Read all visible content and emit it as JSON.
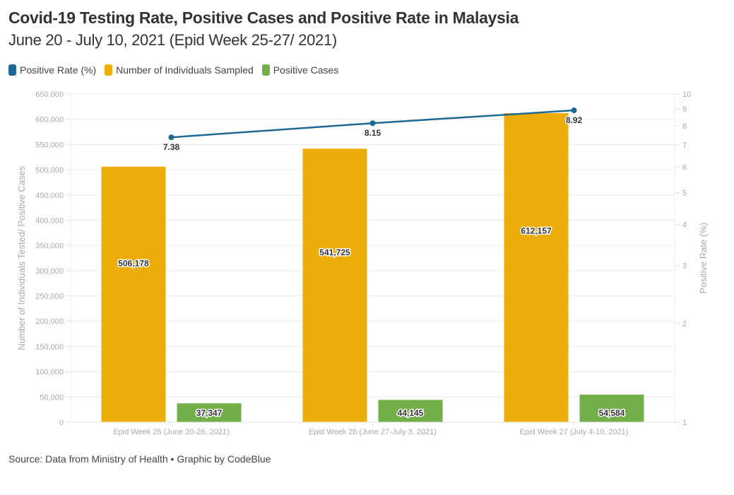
{
  "header": {
    "title": "Covid-19 Testing Rate, Positive Cases and Positive Rate in Malaysia",
    "subtitle": "June 20 - July 10, 2021 (Epid Week 25-27/ 2021)"
  },
  "legend": [
    {
      "label": "Positive Rate (%)",
      "color": "#1d6996"
    },
    {
      "label": "Number of Individuals Sampled",
      "color": "#edad08"
    },
    {
      "label": "Positive Cases",
      "color": "#73af48"
    }
  ],
  "footer": {
    "source": "Source: Data from Ministry of Health • Graphic by CodeBlue"
  },
  "chart_data": {
    "type": "bar",
    "title": "Covid-19 Testing Rate, Positive Cases and Positive Rate in Malaysia",
    "subtitle": "June 20 - July 10, 2021 (Epid Week 25-27/ 2021)",
    "categories": [
      "Epid Week 25 (June 20-26, 2021)",
      "Epid Week 26 (June 27-July 3, 2021)",
      "Epid Week 27 (July 4-10, 2021)"
    ],
    "series": [
      {
        "name": "Number of Individuals Sampled",
        "type": "bar",
        "axis": "left",
        "color": "#edad08",
        "values": [
          506178,
          541725,
          612157
        ],
        "labels": [
          "506,178",
          "541,725",
          "612,157"
        ]
      },
      {
        "name": "Positive Cases",
        "type": "bar",
        "axis": "left",
        "color": "#73af48",
        "values": [
          37347,
          44145,
          54584
        ],
        "labels": [
          "37,347",
          "44,145",
          "54,584"
        ]
      },
      {
        "name": "Positive Rate (%)",
        "type": "line",
        "axis": "right",
        "color": "#1d6996",
        "values": [
          7.38,
          8.15,
          8.92
        ],
        "labels": [
          "7.38",
          "8.15",
          "8.92"
        ]
      }
    ],
    "ylabel": "Number of Individuals Tested/ Positive Cases",
    "ylim": [
      0,
      650000
    ],
    "yticks": [
      0,
      50000,
      100000,
      150000,
      200000,
      250000,
      300000,
      350000,
      400000,
      450000,
      500000,
      550000,
      600000,
      650000
    ],
    "ytick_labels": [
      "0",
      "50,000",
      "100,000",
      "150,000",
      "200,000",
      "250,000",
      "300,000",
      "350,000",
      "400,000",
      "450,000",
      "500,000",
      "550,000",
      "600,000",
      "650,000"
    ],
    "y2label": "Positive Rate (%)",
    "y2scale": "log",
    "y2lim": [
      1,
      10
    ],
    "y2ticks": [
      1,
      2,
      3,
      4,
      5,
      6,
      7,
      8,
      9,
      10
    ],
    "y2tick_labels": [
      "1",
      "2",
      "3",
      "4",
      "5",
      "6",
      "7",
      "8",
      "9",
      "10"
    ],
    "grid": true,
    "legend_position": "top-left"
  }
}
